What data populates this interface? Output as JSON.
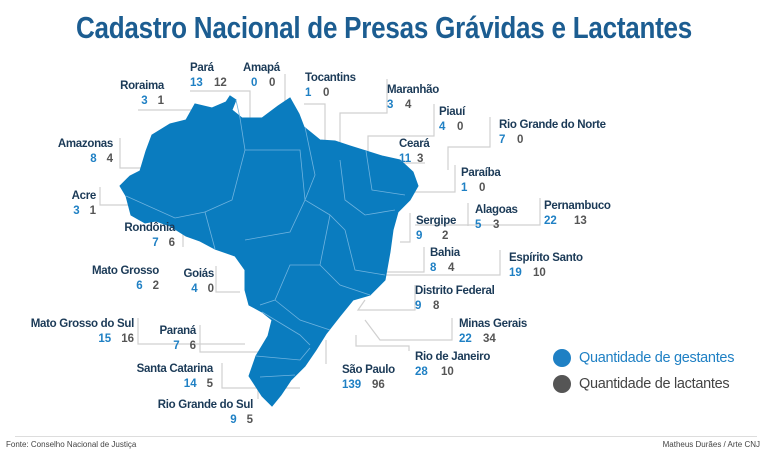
{
  "title": "Cadastro Nacional de Presas Grávidas e Lactantes",
  "colors": {
    "gestantes": "#1f80c4",
    "lactantes": "#555555",
    "map": "#0a7cbf",
    "title": "#1c5d91"
  },
  "states": [
    {
      "name": "Pará",
      "gestantes": "13",
      "lactantes": "12"
    },
    {
      "name": "Amapá",
      "gestantes": "0",
      "lactantes": "0"
    },
    {
      "name": "Roraima",
      "gestantes": "3",
      "lactantes": "1"
    },
    {
      "name": "Tocantins",
      "gestantes": "1",
      "lactantes": "0"
    },
    {
      "name": "Maranhão",
      "gestantes": "3",
      "lactantes": "4"
    },
    {
      "name": "Piauí",
      "gestantes": "4",
      "lactantes": "0"
    },
    {
      "name": "Rio Grande do Norte",
      "gestantes": "7",
      "lactantes": "0"
    },
    {
      "name": "Ceará",
      "gestantes": "11",
      "lactantes": "3"
    },
    {
      "name": "Amazonas",
      "gestantes": "8",
      "lactantes": "4"
    },
    {
      "name": "Paraíba",
      "gestantes": "1",
      "lactantes": "0"
    },
    {
      "name": "Acre",
      "gestantes": "3",
      "lactantes": "1"
    },
    {
      "name": "Pernambuco",
      "gestantes": "22",
      "lactantes": "13"
    },
    {
      "name": "Alagoas",
      "gestantes": "5",
      "lactantes": "3"
    },
    {
      "name": "Sergipe",
      "gestantes": "9",
      "lactantes": "2"
    },
    {
      "name": "Rondônia",
      "gestantes": "7",
      "lactantes": "6"
    },
    {
      "name": "Bahia",
      "gestantes": "8",
      "lactantes": "4"
    },
    {
      "name": "Espírito Santo",
      "gestantes": "19",
      "lactantes": "10"
    },
    {
      "name": "Mato Grosso",
      "gestantes": "6",
      "lactantes": "2"
    },
    {
      "name": "Goiás",
      "gestantes": "4",
      "lactantes": "0"
    },
    {
      "name": "Distrito Federal",
      "gestantes": "9",
      "lactantes": "8"
    },
    {
      "name": "Minas Gerais",
      "gestantes": "22",
      "lactantes": "34"
    },
    {
      "name": "Mato Grosso do Sul",
      "gestantes": "15",
      "lactantes": "16"
    },
    {
      "name": "Paraná",
      "gestantes": "7",
      "lactantes": "6"
    },
    {
      "name": "Rio de Janeiro",
      "gestantes": "28",
      "lactantes": "10"
    },
    {
      "name": "Santa Catarina",
      "gestantes": "14",
      "lactantes": "5"
    },
    {
      "name": "São Paulo",
      "gestantes": "139",
      "lactantes": "96"
    },
    {
      "name": "Rio Grande do Sul",
      "gestantes": "9",
      "lactantes": "5"
    }
  ],
  "legend": {
    "gestantes": "Quantidade de gestantes",
    "lactantes": "Quantidade de lactantes"
  },
  "footer": {
    "source": "Fonte: Conselho Nacional de Justiça",
    "credit": "Matheus Durães / Arte CNJ"
  }
}
